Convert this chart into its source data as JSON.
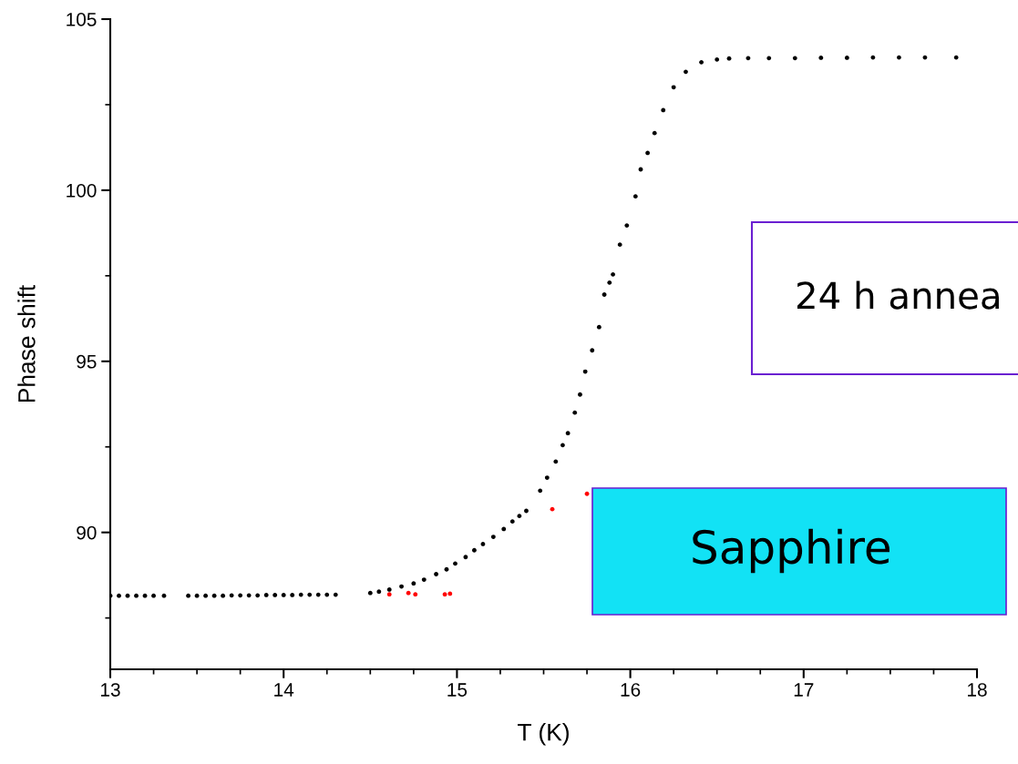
{
  "chart_data": {
    "type": "scatter",
    "xlabel": "T (K)",
    "ylabel": "Phase shift",
    "xlim": [
      13,
      18
    ],
    "xticks": [
      13,
      14,
      15,
      16,
      17,
      18
    ],
    "ylim": [
      86,
      105
    ],
    "yticks": [
      90,
      95,
      100,
      105
    ],
    "marker": "circle",
    "grid": false,
    "legend": false,
    "series": [
      {
        "color": "#000000",
        "x": [
          13.0,
          13.05,
          13.1,
          13.15,
          13.2,
          13.25,
          13.31,
          13.45,
          13.5,
          13.55,
          13.6,
          13.65,
          13.7,
          13.75,
          13.8,
          13.85,
          13.9,
          13.95,
          14.0,
          14.05,
          14.1,
          14.15,
          14.2,
          14.25,
          14.3,
          14.5,
          14.55,
          14.61,
          14.68,
          14.75,
          14.81,
          14.88,
          14.94,
          14.99,
          15.05,
          15.1,
          15.15,
          15.21,
          15.27,
          15.32,
          15.36,
          15.4,
          15.48,
          15.52,
          15.57,
          15.61,
          15.64,
          15.68,
          15.71,
          15.74,
          15.78,
          15.82,
          15.85,
          15.88,
          15.9,
          15.94,
          15.98,
          16.03,
          16.06,
          16.1,
          16.14,
          16.19,
          16.25,
          16.32,
          16.41,
          16.5,
          16.57,
          16.68,
          16.8,
          16.95,
          17.1,
          17.25,
          17.4,
          17.55,
          17.7,
          17.88
        ],
        "values": [
          88.15,
          88.15,
          88.15,
          88.15,
          88.15,
          88.15,
          88.15,
          88.15,
          88.15,
          88.15,
          88.15,
          88.15,
          88.16,
          88.16,
          88.16,
          88.16,
          88.17,
          88.17,
          88.17,
          88.17,
          88.18,
          88.18,
          88.18,
          88.18,
          88.18,
          88.23,
          88.27,
          88.33,
          88.42,
          88.51,
          88.62,
          88.78,
          88.92,
          89.09,
          89.28,
          89.48,
          89.66,
          89.87,
          90.1,
          90.32,
          90.48,
          90.63,
          91.22,
          91.6,
          92.07,
          92.55,
          92.9,
          93.5,
          94.03,
          94.7,
          95.32,
          96.0,
          96.95,
          97.3,
          97.54,
          98.41,
          98.97,
          99.82,
          100.61,
          101.09,
          101.67,
          102.34,
          103.01,
          103.46,
          103.74,
          103.82,
          103.85,
          103.86,
          103.86,
          103.86,
          103.87,
          103.87,
          103.88,
          103.88,
          103.88,
          103.88
        ]
      },
      {
        "color": "#ff0000",
        "x": [
          14.61,
          14.72,
          14.76,
          14.93,
          14.96,
          15.55,
          15.75
        ],
        "values": [
          88.19,
          88.23,
          88.19,
          88.19,
          88.21,
          90.68,
          91.13
        ]
      }
    ],
    "annotations": [
      "24 h annea",
      "Sapphire"
    ]
  }
}
